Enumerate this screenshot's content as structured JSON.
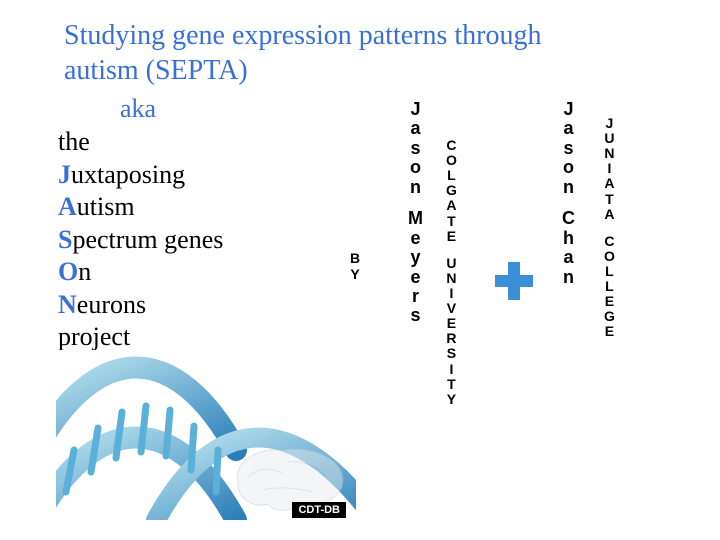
{
  "title_line1": "Studying gene expression patterns through",
  "title_line2": "autism (SEPTA)",
  "aka": "aka",
  "acronym": {
    "prefix": "the",
    "lines": [
      {
        "lead": "J",
        "rest": "uxtaposing"
      },
      {
        "lead": "A",
        "rest": "utism"
      },
      {
        "lead": "S",
        "rest": "pectrum genes"
      },
      {
        "lead": "O",
        "rest": "n"
      },
      {
        "lead": "N",
        "rest": "eurons"
      }
    ],
    "suffix": "project"
  },
  "by_label": "BY",
  "person1": {
    "first": "Jason",
    "last": "Meyers",
    "school1": "COLGATE",
    "school2": "UNIVERSITY"
  },
  "person2": {
    "first": "Jason",
    "last": "Chan",
    "school1": "JUNIATA",
    "school2": "COLLEGE"
  },
  "image_label": "CDT-DB",
  "colors": {
    "accent": "#3a6fd8",
    "plus": "#3a8fd8",
    "dna_light": "#8fcfe8",
    "dna_dark": "#2a7fb8",
    "brain": "#cfd6dd"
  }
}
